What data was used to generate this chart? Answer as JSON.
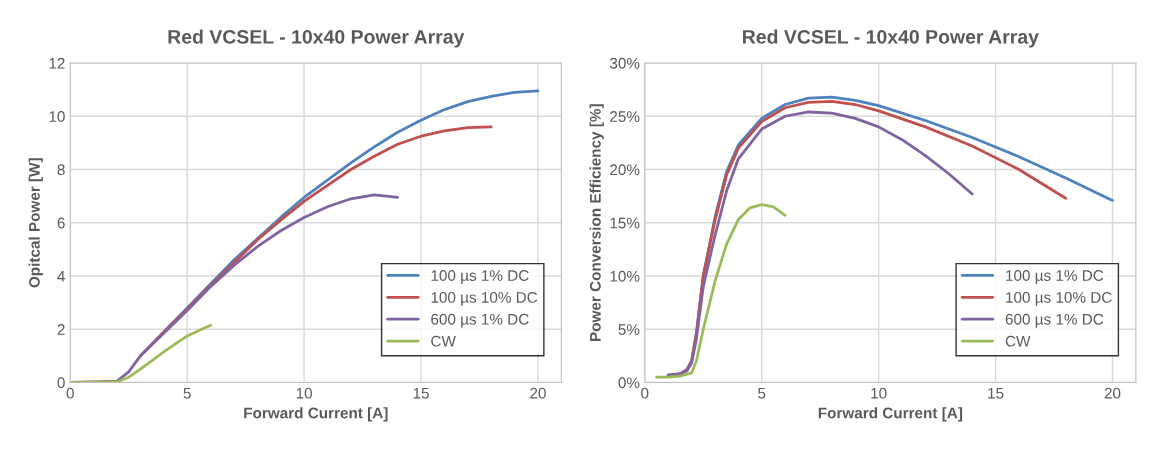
{
  "chart_data": [
    {
      "type": "line",
      "title": "Red VCSEL - 10x40 Power Array",
      "xlabel": "Forward Current [A]",
      "ylabel": "Opitcal Power [W]",
      "xlim": [
        0,
        21
      ],
      "xticks": [
        0,
        5,
        10,
        15,
        20
      ],
      "ylim": [
        0,
        12
      ],
      "yticks": [
        0,
        2,
        4,
        6,
        8,
        10,
        12
      ],
      "grid": true,
      "legend": "bottom right",
      "marker": "none",
      "line_style": "solid",
      "series": [
        {
          "name": "100 µs 1% DC",
          "color": "#4f81bd",
          "x": [
            3,
            4,
            5,
            6,
            7,
            8,
            9,
            10,
            11,
            12,
            13,
            14,
            15,
            16,
            17,
            18,
            19,
            20
          ],
          "values": [
            1.0,
            1.9,
            2.8,
            3.7,
            4.6,
            5.4,
            6.2,
            6.95,
            7.6,
            8.25,
            8.85,
            9.4,
            9.85,
            10.25,
            10.55,
            10.75,
            10.9,
            10.95
          ]
        },
        {
          "name": "100 µs 10% DC",
          "color": "#c0504d",
          "x": [
            3,
            4,
            5,
            6,
            7,
            8,
            9,
            10,
            11,
            12,
            13,
            14,
            15,
            16,
            17,
            18
          ],
          "values": [
            1.0,
            1.9,
            2.75,
            3.65,
            4.5,
            5.35,
            6.1,
            6.8,
            7.4,
            8.0,
            8.5,
            8.95,
            9.25,
            9.45,
            9.57,
            9.6
          ]
        },
        {
          "name": "600 µs 1% DC",
          "color": "#8064a2",
          "x": [
            0,
            1,
            2,
            2.5,
            3,
            4,
            5,
            6,
            7,
            8,
            9,
            10,
            11,
            12,
            13,
            14
          ],
          "values": [
            0,
            0.02,
            0.05,
            0.4,
            1.0,
            1.85,
            2.7,
            3.6,
            4.4,
            5.1,
            5.7,
            6.2,
            6.6,
            6.9,
            7.05,
            6.95
          ]
        },
        {
          "name": "CW",
          "color": "#9bbb59",
          "x": [
            0,
            1,
            2,
            2.5,
            3,
            4,
            5,
            6
          ],
          "values": [
            0,
            0.01,
            0.02,
            0.2,
            0.5,
            1.15,
            1.75,
            2.15
          ]
        }
      ]
    },
    {
      "type": "line",
      "title": "Red VCSEL - 10x40 Power Array",
      "xlabel": "Forward Current [A]",
      "ylabel": "Power Conversion Efficiency [%]",
      "xlim": [
        0,
        21
      ],
      "xticks": [
        0,
        5,
        10,
        15,
        20
      ],
      "ylim": [
        0,
        30
      ],
      "yticks": [
        {
          "value": 0,
          "label": "0%"
        },
        {
          "value": 5,
          "label": "5%"
        },
        {
          "value": 10,
          "label": "10%"
        },
        {
          "value": 15,
          "label": "15%"
        },
        {
          "value": 20,
          "label": "20%"
        },
        {
          "value": 25,
          "label": "25%"
        },
        {
          "value": 30,
          "label": "30%"
        }
      ],
      "grid": true,
      "legend": "bottom right",
      "marker": "none",
      "line_style": "solid",
      "series": [
        {
          "name": "100 µs 1% DC",
          "color": "#4f81bd",
          "x": [
            1,
            1.5,
            1.8,
            2,
            2.2,
            2.5,
            3,
            3.5,
            4,
            5,
            6,
            7,
            8,
            9,
            10,
            12,
            14,
            16,
            18,
            20
          ],
          "values": [
            0.7,
            0.8,
            1.2,
            2.0,
            4.5,
            10,
            15.5,
            19.8,
            22.3,
            24.8,
            26.1,
            26.7,
            26.8,
            26.5,
            26,
            24.6,
            23,
            21.2,
            19.2,
            17.1
          ]
        },
        {
          "name": "100 µs 10% DC",
          "color": "#c0504d",
          "x": [
            1,
            1.5,
            1.8,
            2,
            2.2,
            2.5,
            3,
            3.5,
            4,
            5,
            6,
            7,
            8,
            9,
            10,
            12,
            14,
            16,
            18
          ],
          "values": [
            0.7,
            0.8,
            1.2,
            2.0,
            4.5,
            10,
            15.2,
            19.5,
            22.0,
            24.5,
            25.8,
            26.3,
            26.4,
            26.1,
            25.5,
            24,
            22.2,
            20,
            17.3
          ]
        },
        {
          "name": "600 µs 1% DC",
          "color": "#8064a2",
          "x": [
            1,
            1.5,
            1.8,
            2,
            2.2,
            2.5,
            3,
            3.5,
            4,
            5,
            6,
            7,
            8,
            9,
            10,
            11,
            12,
            13,
            14
          ],
          "values": [
            0.7,
            0.8,
            1.1,
            1.8,
            4.0,
            9,
            13.8,
            18,
            21,
            23.8,
            25,
            25.4,
            25.3,
            24.8,
            24,
            22.8,
            21.3,
            19.6,
            17.7
          ]
        },
        {
          "name": "CW",
          "color": "#9bbb59",
          "x": [
            0.5,
            1,
            1.5,
            2,
            2.2,
            2.5,
            3,
            3.5,
            4,
            4.5,
            5,
            5.5,
            6
          ],
          "values": [
            0.5,
            0.5,
            0.6,
            0.9,
            2,
            5,
            9.5,
            13,
            15.3,
            16.4,
            16.7,
            16.5,
            15.7
          ]
        }
      ]
    }
  ]
}
